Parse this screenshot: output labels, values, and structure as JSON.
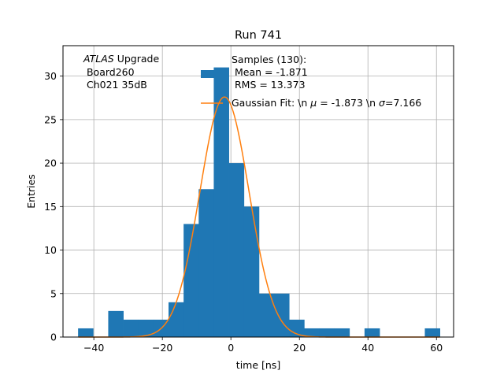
{
  "chart_data": {
    "type": "bar",
    "title": "Run 741",
    "xlabel": "time [ns]",
    "ylabel": "Entries",
    "xlim": [
      -49,
      65
    ],
    "ylim": [
      0,
      33.5
    ],
    "grid": true,
    "xticks": [
      -40,
      -20,
      0,
      20,
      40,
      60
    ],
    "yticks": [
      0,
      5,
      10,
      15,
      20,
      25,
      30
    ],
    "bin_width": 4.4,
    "bin_edges": [
      -44.6,
      -40.2,
      -35.8,
      -31.4,
      -27.0,
      -22.6,
      -18.2,
      -13.8,
      -9.4,
      -5.0,
      -0.6,
      3.8,
      8.2,
      12.6,
      17.0,
      21.4,
      25.8,
      30.2,
      34.6,
      39.0,
      43.4,
      47.8,
      52.2,
      56.6,
      61.0
    ],
    "counts": [
      1,
      0,
      3,
      2,
      2,
      2,
      4,
      13,
      17,
      31,
      20,
      15,
      5,
      5,
      2,
      1,
      1,
      1,
      0,
      1,
      0,
      0,
      0,
      1
    ],
    "series": [
      {
        "name": "Samples (130):\n Mean = -1.871\n RMS = 13.373",
        "kind": "histogram",
        "color": "#1f77b4"
      },
      {
        "name": "Gaussian Fit: \\n $\\mu$ = -1.873 \\n $\\sigma$=7.166",
        "kind": "line",
        "color": "#ff7f0e",
        "mu": -1.873,
        "sigma": 7.166,
        "amplitude": 27.6
      }
    ],
    "legend": {
      "placement": "top-right",
      "samples_lines": [
        "Samples (130):",
        " Mean = -1.871",
        " RMS = 13.373"
      ],
      "fit_parts": [
        "Gaussian Fit: \\n ",
        "μ",
        " = -1.873 \\n ",
        "σ",
        "=7.166"
      ]
    },
    "annotation": {
      "italic": "ATLAS",
      "rest": " Upgrade",
      "lines": [
        " Board260",
        " Ch021 35dB"
      ]
    }
  }
}
